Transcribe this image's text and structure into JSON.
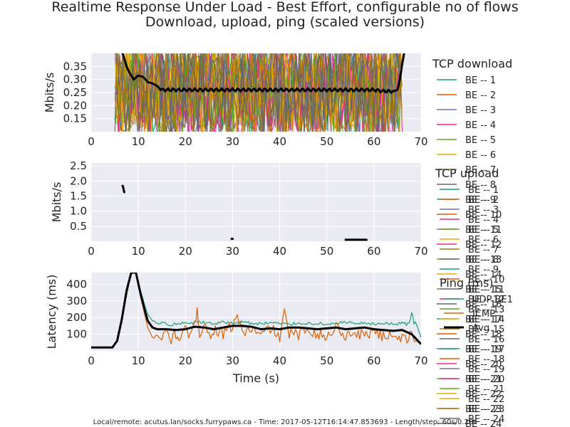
{
  "figure": {
    "title_line1": "Realtime Response Under Load - Best Effort, configurable no of flows",
    "title_line2": "Download, upload, ping (scaled versions)",
    "footer": "Local/remote: acutus.lan/socks.furrypaws.ca - Time: 2017-05-12T16:14:47.853693 - Length/step: 60s/0.20s",
    "background_color": "#eaeaf2",
    "grid_color": "#ffffff"
  },
  "chart_data": [
    {
      "type": "line",
      "ylabel": "Mbits/s",
      "xlim": [
        0,
        70
      ],
      "ylim": [
        0.1,
        0.4
      ],
      "xticks": [
        0,
        10,
        20,
        30,
        40,
        50,
        60,
        70
      ],
      "yticks": [
        0.15,
        0.2,
        0.25,
        0.3,
        0.35
      ],
      "ytick_labels": [
        "0.15",
        "0.20",
        "0.25",
        "0.30",
        "0.35"
      ],
      "legend_title": "TCP download",
      "legend_entries": [
        "BE -- 1",
        "BE -- 2",
        "BE -- 3",
        "BE -- 4",
        "BE -- 5",
        "BE -- 6",
        "BE -- 7",
        "BE -- 8",
        "BE -- 9",
        "BE -- 10",
        "BE -- 11",
        "BE -- 12",
        "BE -- 13",
        "BE -- 14",
        "BE -- 15",
        "BE -- 16",
        "BE -- 17",
        "BE -- 18",
        "BE -- 19",
        "BE -- 20",
        "BE -- 21",
        "BE -- 22",
        "BE -- 23",
        "BE -- 24"
      ],
      "legend_colors": [
        "#1b9e77",
        "#d95f02",
        "#7570b3",
        "#e7298a",
        "#66a61e",
        "#e6ab02",
        "#a6761d",
        "#666666"
      ],
      "series_active_range": [
        5,
        66
      ],
      "series": [
        {
          "name": "avg",
          "color": "#000000",
          "x": [
            6.5,
            7,
            7.5,
            8,
            9,
            10,
            11,
            12,
            13,
            14,
            15,
            20,
            25,
            30,
            35,
            40,
            45,
            50,
            55,
            60,
            62,
            64,
            65,
            65.5,
            66,
            66.5
          ],
          "y": [
            0.41,
            0.38,
            0.35,
            0.33,
            0.3,
            0.315,
            0.31,
            0.29,
            0.285,
            0.275,
            0.26,
            0.26,
            0.26,
            0.26,
            0.26,
            0.26,
            0.26,
            0.26,
            0.26,
            0.26,
            0.255,
            0.255,
            0.26,
            0.3,
            0.36,
            0.41
          ]
        }
      ]
    },
    {
      "type": "line",
      "ylabel": "Mbits/s",
      "xlim": [
        0,
        70
      ],
      "ylim": [
        0,
        2.6
      ],
      "xticks": [
        0,
        10,
        20,
        30,
        40,
        50,
        60,
        70
      ],
      "yticks": [
        0.5,
        1.0,
        1.5,
        2.0,
        2.5
      ],
      "ytick_labels": [
        "0.5",
        "1.0",
        "1.5",
        "2.0",
        "2.5"
      ],
      "legend_title": "TCP upload",
      "legend_entries": [
        "BE -- 1",
        "BE -- 2",
        "BE -- 3",
        "BE -- 4",
        "BE -- 5",
        "BE -- 6",
        "BE -- 7",
        "BE -- 8",
        "BE -- 9",
        "BE -- 10",
        "BE -- 11",
        "BE -- 12",
        "BE -- 13",
        "BE -- 14",
        "BE -- 15",
        "BE -- 16",
        "BE -- 17",
        "BE -- 18",
        "BE -- 19",
        "BE -- 20",
        "BE -- 21",
        "BE -- 22",
        "BE -- 23",
        "BE -- 24"
      ],
      "legend_colors": [
        "#1b9e77",
        "#d95f02",
        "#7570b3",
        "#e7298a",
        "#66a61e",
        "#e6ab02",
        "#a6761d",
        "#666666"
      ],
      "series": [
        {
          "name": "avg",
          "color": "#000000",
          "segments": [
            {
              "x": [
                6.6,
                6.8,
                7.0,
                7.2
              ],
              "y": [
                1.87,
                1.78,
                1.63,
                1.62
              ]
            },
            {
              "x": [
                29.6,
                30.2
              ],
              "y": [
                0.08,
                0.08
              ]
            },
            {
              "x": [
                53.8,
                58.6
              ],
              "y": [
                0.05,
                0.05
              ]
            }
          ]
        }
      ]
    },
    {
      "type": "line",
      "ylabel": "Latency (ms)",
      "xlabel": "Time (s)",
      "xlim": [
        0,
        70
      ],
      "ylim": [
        0,
        470
      ],
      "xticks": [
        0,
        10,
        20,
        30,
        40,
        50,
        60,
        70
      ],
      "yticks": [
        100,
        200,
        300,
        400
      ],
      "ytick_labels": [
        "100",
        "200",
        "300",
        "400"
      ],
      "legend_title": "Ping (ms)",
      "legend_entries": [
        "UDP BE1",
        "ICMP",
        "Avg"
      ],
      "legend_colors": [
        "#1b9e77",
        "#d95f02",
        "#000000"
      ],
      "series": [
        {
          "name": "UDP BE1",
          "color": "#1b9e77",
          "x": [
            0,
            4.5,
            5.5,
            6.5,
            7.5,
            8.5,
            9.5,
            10.5,
            11.5,
            12,
            13,
            14,
            15,
            17,
            19,
            21,
            22.5,
            23.5,
            25,
            28,
            30,
            32,
            35,
            38,
            41,
            44,
            47,
            50,
            53,
            56,
            59,
            62,
            64,
            66,
            67.5,
            68,
            68.5,
            69,
            70
          ],
          "y": [
            20,
            20,
            60,
            180,
            330,
            470,
            470,
            360,
            260,
            220,
            180,
            160,
            170,
            155,
            165,
            160,
            175,
            170,
            165,
            170,
            165,
            175,
            160,
            170,
            160,
            165,
            165,
            160,
            170,
            165,
            160,
            165,
            160,
            165,
            160,
            230,
            170,
            160,
            80
          ]
        },
        {
          "name": "ICMP",
          "color": "#d95f02",
          "x": [
            0,
            4.5,
            5.5,
            6.5,
            7.5,
            8.5,
            9.5,
            10.5,
            11.5,
            12,
            13,
            14,
            15,
            16,
            17,
            18,
            19,
            20,
            21,
            22,
            22.5,
            23,
            24,
            25,
            26,
            28,
            30,
            31,
            32,
            34,
            36,
            38,
            40,
            41,
            42,
            44,
            46,
            48,
            50,
            52,
            54,
            56,
            58,
            60,
            62,
            64,
            66,
            68,
            69,
            70
          ],
          "y": [
            20,
            20,
            60,
            200,
            380,
            470,
            470,
            320,
            200,
            140,
            80,
            110,
            60,
            120,
            70,
            100,
            80,
            120,
            90,
            140,
            270,
            110,
            160,
            90,
            130,
            100,
            150,
            220,
            110,
            130,
            90,
            140,
            80,
            220,
            110,
            90,
            140,
            100,
            80,
            150,
            90,
            110,
            90,
            130,
            80,
            110,
            70,
            90,
            60,
            40
          ]
        },
        {
          "name": "Avg",
          "color": "#000000",
          "x": [
            0,
            4.5,
            5.5,
            6.5,
            7.5,
            8.5,
            9.5,
            10.5,
            11.5,
            12,
            13,
            14,
            16,
            18,
            20,
            22,
            24,
            26,
            28,
            30,
            32,
            34,
            36,
            38,
            40,
            42,
            44,
            46,
            48,
            50,
            52,
            54,
            56,
            58,
            60,
            62,
            64,
            66,
            68,
            70
          ],
          "y": [
            20,
            20,
            60,
            190,
            360,
            470,
            470,
            340,
            230,
            180,
            140,
            130,
            130,
            125,
            130,
            145,
            140,
            130,
            140,
            150,
            150,
            145,
            130,
            135,
            130,
            140,
            140,
            135,
            130,
            135,
            140,
            130,
            135,
            140,
            130,
            125,
            120,
            125,
            100,
            40
          ]
        }
      ]
    }
  ]
}
